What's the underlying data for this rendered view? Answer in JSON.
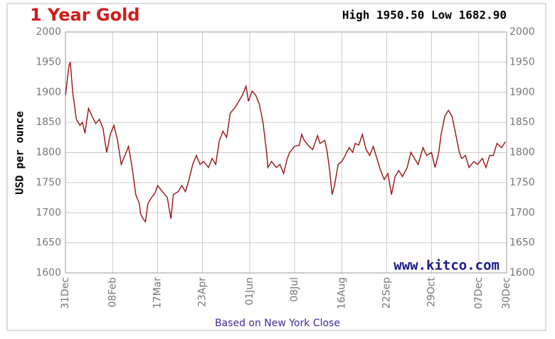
{
  "chart_data": {
    "type": "line",
    "title": "1 Year Gold",
    "subtitle": "High 1950.50 Low 1682.90",
    "y_label": "USD per ounce",
    "watermark": "www.kitco.com",
    "x_label": "Based on New York Close",
    "grid": true,
    "xlim": [
      0,
      364
    ],
    "xticks": [
      {
        "value": 0,
        "label": "31Dec"
      },
      {
        "value": 39,
        "label": "08Feb"
      },
      {
        "value": 76,
        "label": "17Mar"
      },
      {
        "value": 113,
        "label": "23Apr"
      },
      {
        "value": 152,
        "label": "01Jun"
      },
      {
        "value": 189,
        "label": "08Jul"
      },
      {
        "value": 228,
        "label": "16Aug"
      },
      {
        "value": 265,
        "label": "22Sep"
      },
      {
        "value": 302,
        "label": "29Oct"
      },
      {
        "value": 341,
        "label": "07Dec"
      },
      {
        "value": 364,
        "label": "30Dec"
      }
    ],
    "ylim": [
      1600,
      2000
    ],
    "yticks": [
      1600,
      1650,
      1700,
      1750,
      1800,
      1850,
      1900,
      1950,
      2000
    ],
    "x": [
      0,
      3,
      4,
      6,
      9,
      12,
      14,
      16,
      19,
      22,
      25,
      28,
      31,
      34,
      37,
      40,
      43,
      46,
      49,
      52,
      55,
      58,
      61,
      62,
      64,
      66,
      68,
      71,
      74,
      76,
      80,
      84,
      87,
      89,
      93,
      96,
      99,
      102,
      105,
      108,
      111,
      114,
      118,
      121,
      124,
      127,
      130,
      133,
      136,
      140,
      143,
      146,
      149,
      151,
      154,
      157,
      160,
      163,
      166,
      167,
      170,
      174,
      177,
      180,
      183,
      185,
      189,
      193,
      195,
      197,
      201,
      204,
      208,
      210,
      214,
      216,
      218,
      220,
      222,
      225,
      228,
      230,
      234,
      237,
      239,
      242,
      245,
      248,
      251,
      254,
      257,
      260,
      263,
      266,
      269,
      272,
      275,
      278,
      282,
      285,
      288,
      291,
      295,
      298,
      302,
      305,
      308,
      310,
      313,
      316,
      319,
      322,
      325,
      327,
      330,
      333,
      337,
      340,
      344,
      347,
      350,
      353,
      356,
      360,
      363
    ],
    "series": [
      {
        "name": "Gold",
        "color": "#9b1111",
        "values": [
          1895,
          1945,
          1950,
          1900,
          1855,
          1845,
          1850,
          1832,
          1873,
          1860,
          1848,
          1855,
          1840,
          1800,
          1830,
          1845,
          1820,
          1780,
          1795,
          1810,
          1775,
          1730,
          1715,
          1698,
          1690,
          1685,
          1715,
          1725,
          1733,
          1745,
          1735,
          1725,
          1690,
          1730,
          1735,
          1745,
          1735,
          1755,
          1780,
          1795,
          1780,
          1785,
          1775,
          1790,
          1780,
          1820,
          1835,
          1825,
          1865,
          1875,
          1885,
          1895,
          1910,
          1885,
          1902,
          1895,
          1880,
          1850,
          1800,
          1775,
          1785,
          1775,
          1780,
          1765,
          1790,
          1800,
          1810,
          1812,
          1830,
          1820,
          1810,
          1805,
          1828,
          1815,
          1820,
          1800,
          1770,
          1730,
          1745,
          1780,
          1785,
          1792,
          1808,
          1800,
          1815,
          1812,
          1830,
          1805,
          1795,
          1810,
          1790,
          1770,
          1755,
          1765,
          1730,
          1760,
          1770,
          1760,
          1775,
          1800,
          1790,
          1780,
          1808,
          1795,
          1800,
          1775,
          1800,
          1830,
          1860,
          1870,
          1860,
          1830,
          1800,
          1790,
          1795,
          1775,
          1785,
          1780,
          1790,
          1775,
          1795,
          1795,
          1815,
          1808,
          1818
        ]
      }
    ]
  }
}
